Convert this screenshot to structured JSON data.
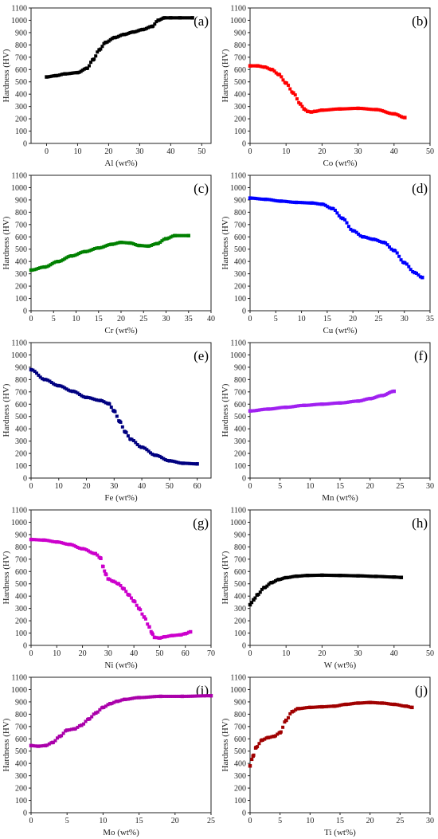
{
  "chart_data": [
    {
      "type": "scatter",
      "panel": "(a)",
      "xlabel": "Al (wt%)",
      "ylabel": "Hardness (HV)",
      "color": "#000000",
      "xlim": [
        -5,
        53
      ],
      "ylim": [
        0,
        1100
      ],
      "xticks": [
        0,
        10,
        20,
        30,
        40,
        50
      ],
      "yticks": [
        0,
        100,
        200,
        300,
        400,
        500,
        600,
        700,
        800,
        900,
        1000,
        1100
      ],
      "label_pos": "top-right",
      "x": [
        0,
        3,
        6,
        10,
        13,
        15,
        17,
        19,
        22,
        25,
        28,
        31,
        34,
        36,
        38,
        40,
        43,
        47
      ],
      "y": [
        540,
        550,
        565,
        575,
        610,
        680,
        760,
        820,
        860,
        885,
        905,
        925,
        950,
        1000,
        1020,
        1020,
        1020,
        1020
      ]
    },
    {
      "type": "scatter",
      "panel": "(b)",
      "xlabel": "Co (wt%)",
      "ylabel": "Hardness (HV)",
      "color": "#ff0000",
      "xlim": [
        0,
        50
      ],
      "ylim": [
        0,
        1100
      ],
      "xticks": [
        0,
        10,
        20,
        30,
        40,
        50
      ],
      "yticks": [
        0,
        100,
        200,
        300,
        400,
        500,
        600,
        700,
        800,
        900,
        1000,
        1100
      ],
      "label_pos": "top-right",
      "x": [
        0,
        2,
        4,
        6,
        8,
        10,
        12,
        14,
        15,
        16,
        17,
        18,
        20,
        25,
        30,
        35,
        40,
        43
      ],
      "y": [
        630,
        630,
        620,
        600,
        560,
        490,
        410,
        320,
        280,
        260,
        255,
        260,
        270,
        280,
        285,
        275,
        240,
        210
      ]
    },
    {
      "type": "scatter",
      "panel": "(c)",
      "xlabel": "Cr (wt%)",
      "ylabel": "Hardness (HV)",
      "color": "#008000",
      "xlim": [
        0,
        40
      ],
      "ylim": [
        0,
        1100
      ],
      "xticks": [
        0,
        5,
        10,
        15,
        20,
        25,
        30,
        35,
        40
      ],
      "yticks": [
        0,
        100,
        200,
        300,
        400,
        500,
        600,
        700,
        800,
        900,
        1000,
        1100
      ],
      "label_pos": "top-right",
      "x": [
        0,
        3,
        6,
        9,
        12,
        15,
        18,
        20,
        22,
        24,
        26,
        28,
        30,
        32,
        35
      ],
      "y": [
        330,
        355,
        400,
        445,
        480,
        510,
        540,
        555,
        550,
        530,
        525,
        545,
        585,
        610,
        610
      ]
    },
    {
      "type": "scatter",
      "panel": "(d)",
      "xlabel": "Cu (wt%)",
      "ylabel": "Hardness (HV)",
      "color": "#0000ff",
      "xlim": [
        0,
        35
      ],
      "ylim": [
        0,
        1100
      ],
      "xticks": [
        0,
        5,
        10,
        15,
        20,
        25,
        30,
        35
      ],
      "yticks": [
        0,
        100,
        200,
        300,
        400,
        500,
        600,
        700,
        800,
        900,
        1000,
        1100
      ],
      "label_pos": "top-right",
      "x": [
        0,
        3,
        6,
        9,
        12,
        14,
        16,
        18,
        20,
        22,
        24,
        26,
        28,
        30,
        32,
        33.5
      ],
      "y": [
        915,
        905,
        890,
        880,
        875,
        865,
        830,
        750,
        650,
        600,
        580,
        555,
        490,
        390,
        310,
        270
      ]
    },
    {
      "type": "scatter",
      "panel": "(e)",
      "xlabel": "Fe (wt%)",
      "ylabel": "Hardness (HV)",
      "color": "#000080",
      "xlim": [
        0,
        65
      ],
      "ylim": [
        0,
        1100
      ],
      "xticks": [
        0,
        10,
        20,
        30,
        40,
        50,
        60
      ],
      "yticks": [
        0,
        100,
        200,
        300,
        400,
        500,
        600,
        700,
        800,
        900,
        1000,
        1100
      ],
      "label_pos": "top-right",
      "x": [
        0,
        5,
        10,
        15,
        20,
        25,
        28,
        30,
        32,
        34,
        36,
        40,
        45,
        50,
        55,
        60
      ],
      "y": [
        880,
        800,
        750,
        705,
        655,
        630,
        605,
        545,
        460,
        375,
        315,
        250,
        185,
        140,
        120,
        115
      ]
    },
    {
      "type": "scatter",
      "panel": "(f)",
      "xlabel": "Mn (wt%)",
      "ylabel": "Hardness (HV)",
      "color": "#a020f0",
      "xlim": [
        0,
        30
      ],
      "ylim": [
        0,
        1100
      ],
      "xticks": [
        0,
        5,
        10,
        15,
        20,
        25,
        30
      ],
      "yticks": [
        0,
        100,
        200,
        300,
        400,
        500,
        600,
        700,
        800,
        900,
        1000,
        1100
      ],
      "label_pos": "top-right",
      "x": [
        0,
        3,
        6,
        9,
        12,
        15,
        18,
        20,
        22,
        24
      ],
      "y": [
        545,
        560,
        575,
        590,
        600,
        610,
        625,
        645,
        670,
        705
      ]
    },
    {
      "type": "scatter",
      "panel": "(g)",
      "xlabel": "Ni (wt%)",
      "ylabel": "Hardness (HV)",
      "color": "#cc00cc",
      "xlim": [
        0,
        70
      ],
      "ylim": [
        0,
        1100
      ],
      "xticks": [
        0,
        10,
        20,
        30,
        40,
        50,
        60,
        70
      ],
      "yticks": [
        0,
        100,
        200,
        300,
        400,
        500,
        600,
        700,
        800,
        900,
        1000,
        1100
      ],
      "label_pos": "top-right",
      "x": [
        0,
        5,
        10,
        15,
        20,
        25,
        27,
        28,
        29,
        30,
        32,
        34,
        36,
        38,
        40,
        42,
        44,
        46,
        47,
        48,
        50,
        52,
        55,
        58,
        60,
        62
      ],
      "y": [
        860,
        855,
        840,
        820,
        785,
        745,
        710,
        640,
        580,
        540,
        520,
        500,
        460,
        410,
        360,
        300,
        230,
        150,
        100,
        65,
        60,
        70,
        80,
        85,
        95,
        110
      ]
    },
    {
      "type": "scatter",
      "panel": "(h)",
      "xlabel": "W (wt%)",
      "ylabel": "Hardness (HV)",
      "color": "#000000",
      "xlim": [
        0,
        50
      ],
      "ylim": [
        0,
        1100
      ],
      "xticks": [
        0,
        10,
        20,
        30,
        40,
        50
      ],
      "yticks": [
        0,
        100,
        200,
        300,
        400,
        500,
        600,
        700,
        800,
        900,
        1000,
        1100
      ],
      "label_pos": "top-right",
      "x": [
        0,
        1,
        2,
        4,
        6,
        8,
        10,
        13,
        16,
        20,
        25,
        30,
        35,
        40,
        42
      ],
      "y": [
        330,
        370,
        410,
        470,
        510,
        535,
        550,
        562,
        568,
        570,
        568,
        565,
        560,
        555,
        552
      ]
    },
    {
      "type": "scatter",
      "panel": "(i)",
      "xlabel": "Mo (wt%)",
      "ylabel": "Hardness (HV)",
      "color": "#aa00aa",
      "xlim": [
        0,
        25
      ],
      "ylim": [
        0,
        1100
      ],
      "xticks": [
        0,
        5,
        10,
        15,
        20,
        25
      ],
      "yticks": [
        0,
        100,
        200,
        300,
        400,
        500,
        600,
        700,
        800,
        900,
        1000,
        1100
      ],
      "label_pos": "top-right",
      "x": [
        0,
        1,
        2,
        3,
        4,
        5,
        6,
        7,
        8,
        9,
        10,
        11,
        12,
        13,
        15,
        18,
        21,
        25
      ],
      "y": [
        545,
        540,
        545,
        570,
        620,
        670,
        680,
        710,
        760,
        810,
        855,
        885,
        905,
        920,
        935,
        945,
        945,
        950
      ]
    },
    {
      "type": "scatter",
      "panel": "(j)",
      "xlabel": "Ti (wt%)",
      "ylabel": "Hardness (HV)",
      "color": "#a00000",
      "xlim": [
        0,
        30
      ],
      "ylim": [
        0,
        1100
      ],
      "xticks": [
        0,
        5,
        10,
        15,
        20,
        25,
        30
      ],
      "yticks": [
        0,
        100,
        200,
        300,
        400,
        500,
        600,
        700,
        800,
        900,
        1000,
        1100
      ],
      "label_pos": "top-right",
      "x": [
        0,
        0.5,
        1,
        2,
        3,
        4,
        5,
        6,
        7,
        8,
        10,
        12,
        14,
        16,
        18,
        20,
        22,
        24,
        26,
        27
      ],
      "y": [
        380,
        460,
        530,
        590,
        610,
        620,
        650,
        750,
        820,
        845,
        855,
        860,
        865,
        880,
        890,
        895,
        890,
        880,
        865,
        855
      ]
    }
  ]
}
